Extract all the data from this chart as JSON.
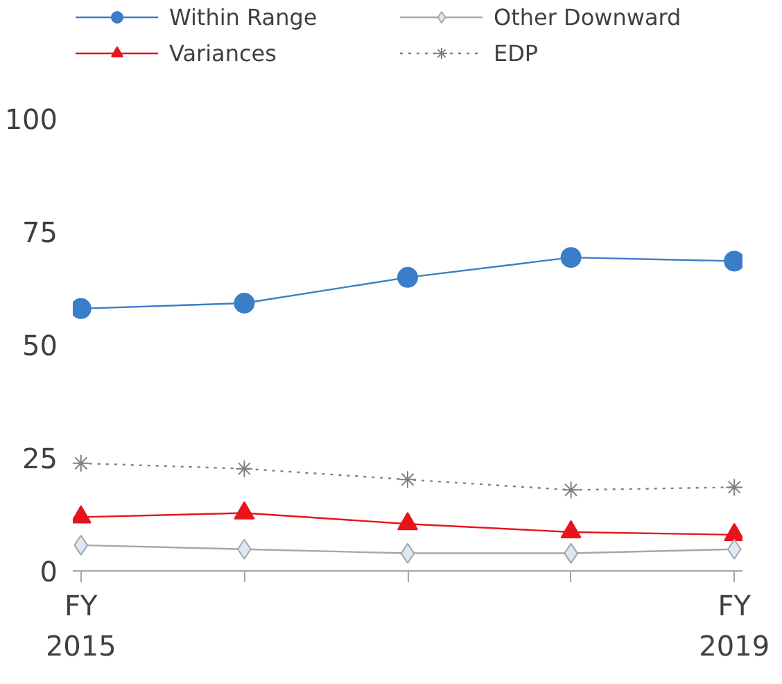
{
  "chart_data": {
    "type": "line",
    "categories": [
      "FY\n2015",
      null,
      null,
      null,
      "FY\n2019"
    ],
    "series": [
      {
        "name": "Within Range",
        "color": "#3a7dc9",
        "marker": "circle",
        "line_style": "solid",
        "values": [
          58.0,
          59.2,
          64.9,
          69.3,
          68.5
        ]
      },
      {
        "name": "Variances",
        "color": "#e8141c",
        "marker": "triangle",
        "line_style": "solid",
        "values": [
          11.9,
          12.8,
          10.4,
          8.6,
          8.0
        ]
      },
      {
        "name": "Other Downward",
        "color": "#a6a6a6",
        "marker": "diamond",
        "line_style": "solid",
        "values": [
          5.7,
          4.8,
          3.9,
          3.9,
          4.8
        ]
      },
      {
        "name": "EDP",
        "color": "#7f7f7f",
        "marker": "cross",
        "line_style": "dotted",
        "values": [
          23.8,
          22.6,
          20.2,
          17.9,
          18.5
        ]
      }
    ],
    "ylim": [
      0,
      100
    ],
    "yticks": [
      0,
      25,
      50,
      75,
      100
    ],
    "grid": false,
    "legend": "top"
  }
}
